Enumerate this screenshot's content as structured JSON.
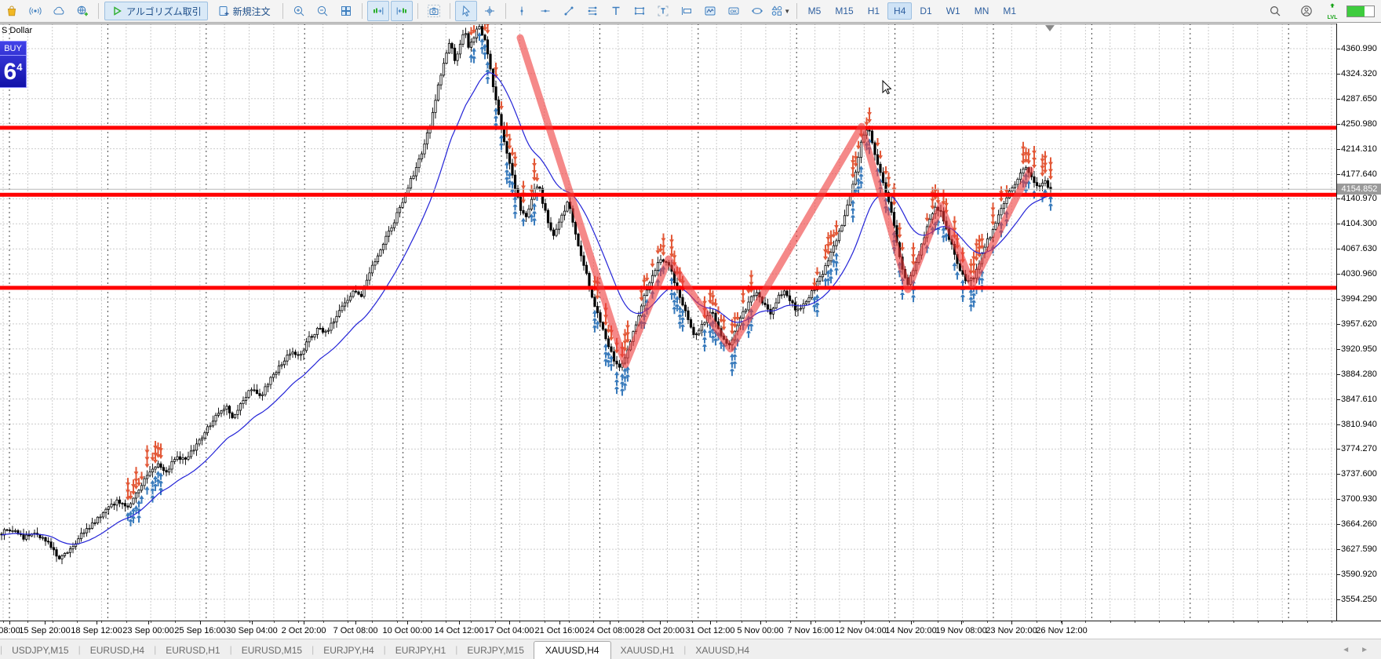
{
  "toolbar": {
    "items": [
      {
        "kind": "icon",
        "icon": "market-bag-icon"
      },
      {
        "kind": "icon",
        "icon": "signals-icon"
      },
      {
        "kind": "icon",
        "icon": "cloud-icon"
      },
      {
        "kind": "icon",
        "icon": "vps-globe-icon"
      },
      {
        "kind": "sep"
      },
      {
        "kind": "button",
        "icon": "algo-play-icon",
        "label": "アルゴリズム取引",
        "pressed": true,
        "name": "algo-trading-button"
      },
      {
        "kind": "button",
        "icon": "new-order-icon",
        "label": "新規注文",
        "pressed": false,
        "name": "new-order-button"
      },
      {
        "kind": "sep"
      },
      {
        "kind": "icon",
        "icon": "zoom-in-icon"
      },
      {
        "kind": "icon",
        "icon": "zoom-out-icon"
      },
      {
        "kind": "icon",
        "icon": "tile-windows-icon"
      },
      {
        "kind": "sep"
      },
      {
        "kind": "icon",
        "icon": "autoscroll-icon",
        "pressed": true
      },
      {
        "kind": "icon",
        "icon": "chart-shift-icon",
        "pressed": true
      },
      {
        "kind": "sep"
      },
      {
        "kind": "icon",
        "icon": "screenshot-camera-icon"
      },
      {
        "kind": "sep"
      },
      {
        "kind": "icon",
        "icon": "cursor-icon",
        "pressed": true
      },
      {
        "kind": "icon",
        "icon": "crosshair-icon"
      },
      {
        "kind": "sep"
      },
      {
        "kind": "icon",
        "icon": "vertical-line-icon"
      },
      {
        "kind": "icon",
        "icon": "horizontal-line-icon"
      },
      {
        "kind": "icon",
        "icon": "trendline-icon"
      },
      {
        "kind": "icon",
        "icon": "equidistant-channel-icon"
      },
      {
        "kind": "icon",
        "icon": "text-tool-icon"
      },
      {
        "kind": "icon",
        "icon": "rectangle-tool-icon"
      },
      {
        "kind": "icon",
        "icon": "text-label-icon"
      },
      {
        "kind": "icon",
        "icon": "price-label-icon"
      },
      {
        "kind": "icon",
        "icon": "indicator-window-icon"
      },
      {
        "kind": "icon",
        "icon": "ok-dialog-icon",
        "ok_text": "OK"
      },
      {
        "kind": "icon",
        "icon": "ellipse-tool-icon"
      },
      {
        "kind": "icon",
        "icon": "shapes-menu-icon",
        "caret": "▼"
      },
      {
        "kind": "sep"
      }
    ],
    "timeframes": [
      {
        "label": "M5",
        "active": false
      },
      {
        "label": "M15",
        "active": false
      },
      {
        "label": "H1",
        "active": false
      },
      {
        "label": "H4",
        "active": true
      },
      {
        "label": "D1",
        "active": false
      },
      {
        "label": "W1",
        "active": false
      },
      {
        "label": "MN",
        "active": false
      },
      {
        "label": "M1",
        "active": false
      }
    ],
    "right": {
      "search_icon": "search-icon",
      "account_icon": "account-icon",
      "level_label": "LVL",
      "progress_fill_pct": 65
    }
  },
  "chart_header": {
    "symbol_label": "S Dollar",
    "oneclick": {
      "buy_label": "BUY",
      "price_big": "6",
      "price_sup": "4"
    }
  },
  "chart_data": {
    "type": "candlestick",
    "symbol": "XAUUSD",
    "timeframe": "H4",
    "current_price": "4154.852",
    "current_price_value": 4154.852,
    "ylim": [
      3523,
      4398
    ],
    "grid": true,
    "price_axis_labels": [
      "4360.990",
      "4324.320",
      "4287.650",
      "4250.980",
      "4214.310",
      "4177.640",
      "4140.970",
      "4104.300",
      "4067.630",
      "4030.960",
      "3994.290",
      "3957.620",
      "3920.950",
      "3884.280",
      "3847.610",
      "3810.940",
      "3774.270",
      "3737.600",
      "3700.930",
      "3664.260",
      "3627.590",
      "3590.920",
      "3554.250"
    ],
    "time_axis_labels": [
      {
        "t": "08:00",
        "x": 12
      },
      {
        "t": "15 Sep 20:00",
        "x": 57
      },
      {
        "t": "18 Sep 12:00",
        "x": 123
      },
      {
        "t": "23 Sep 00:00",
        "x": 189
      },
      {
        "t": "25 Sep 16:00",
        "x": 255
      },
      {
        "t": "30 Sep 04:00",
        "x": 321
      },
      {
        "t": "2 Oct 20:00",
        "x": 387
      },
      {
        "t": "7 Oct 08:00",
        "x": 453
      },
      {
        "t": "10 Oct 00:00",
        "x": 519
      },
      {
        "t": "14 Oct 12:00",
        "x": 585
      },
      {
        "t": "17 Oct 04:00",
        "x": 649
      },
      {
        "t": "21 Oct 16:00",
        "x": 713
      },
      {
        "t": "24 Oct 08:00",
        "x": 777
      },
      {
        "t": "28 Oct 20:00",
        "x": 841
      },
      {
        "t": "31 Oct 12:00",
        "x": 905
      },
      {
        "t": "5 Nov 00:00",
        "x": 969
      },
      {
        "t": "7 Nov 16:00",
        "x": 1033
      },
      {
        "t": "12 Nov 04:00",
        "x": 1097
      },
      {
        "t": "14 Nov 20:00",
        "x": 1161
      },
      {
        "t": "19 Nov 08:00",
        "x": 1225
      },
      {
        "t": "23 Nov 20:00",
        "x": 1289
      },
      {
        "t": "26 Nov 12:00",
        "x": 1353
      }
    ],
    "horizontal_lines": [
      {
        "price": 4245.0,
        "color": "#ff0000",
        "width": 5
      },
      {
        "price": 4147.0,
        "color": "#ff0000",
        "width": 5
      },
      {
        "price": 4010.5,
        "color": "#ff0000",
        "width": 5
      }
    ],
    "zigzag": {
      "color": "#ef3b3b",
      "opacity": 0.6,
      "width": 9,
      "points": [
        [
          663,
          4377
        ],
        [
          797,
          3898
        ],
        [
          852,
          4053
        ],
        [
          931,
          3921
        ],
        [
          1098,
          4247
        ],
        [
          1157,
          4008
        ],
        [
          1199,
          4131
        ],
        [
          1239,
          4015
        ],
        [
          1313,
          4183
        ]
      ]
    },
    "moving_average": {
      "type": "EMA",
      "period": 24,
      "color": "#2323d7"
    },
    "marker_zones": [
      [
        160,
        205
      ],
      [
        598,
        658
      ],
      [
        666,
        700
      ],
      [
        748,
        806
      ],
      [
        810,
        874
      ],
      [
        896,
        964
      ],
      [
        1036,
        1075
      ],
      [
        1086,
        1172
      ],
      [
        1180,
        1254
      ],
      [
        1256,
        1346
      ]
    ],
    "marker_colors": {
      "sell": "#e2502d",
      "buy": "#2e74b8"
    },
    "bar_spacing": 3.5,
    "price_path": [
      [
        0,
        3650
      ],
      [
        15,
        3658
      ],
      [
        30,
        3645
      ],
      [
        45,
        3652
      ],
      [
        60,
        3638
      ],
      [
        75,
        3616
      ],
      [
        90,
        3628
      ],
      [
        105,
        3650
      ],
      [
        120,
        3668
      ],
      [
        135,
        3685
      ],
      [
        150,
        3700
      ],
      [
        162,
        3690
      ],
      [
        175,
        3712
      ],
      [
        188,
        3735
      ],
      [
        200,
        3752
      ],
      [
        212,
        3742
      ],
      [
        225,
        3765
      ],
      [
        238,
        3758
      ],
      [
        250,
        3782
      ],
      [
        262,
        3800
      ],
      [
        275,
        3822
      ],
      [
        288,
        3838
      ],
      [
        298,
        3820
      ],
      [
        308,
        3845
      ],
      [
        320,
        3862
      ],
      [
        332,
        3852
      ],
      [
        345,
        3878
      ],
      [
        358,
        3898
      ],
      [
        370,
        3918
      ],
      [
        382,
        3910
      ],
      [
        394,
        3936
      ],
      [
        406,
        3952
      ],
      [
        416,
        3944
      ],
      [
        428,
        3968
      ],
      [
        440,
        3988
      ],
      [
        450,
        4005
      ],
      [
        460,
        3996
      ],
      [
        470,
        4028
      ],
      [
        480,
        4056
      ],
      [
        490,
        4080
      ],
      [
        500,
        4102
      ],
      [
        510,
        4130
      ],
      [
        520,
        4158
      ],
      [
        530,
        4186
      ],
      [
        540,
        4215
      ],
      [
        550,
        4258
      ],
      [
        558,
        4302
      ],
      [
        566,
        4345
      ],
      [
        574,
        4372
      ],
      [
        580,
        4340
      ],
      [
        586,
        4368
      ],
      [
        592,
        4388
      ],
      [
        598,
        4360
      ],
      [
        604,
        4378
      ],
      [
        610,
        4394
      ],
      [
        616,
        4380
      ],
      [
        622,
        4352
      ],
      [
        628,
        4310
      ],
      [
        634,
        4270
      ],
      [
        640,
        4240
      ],
      [
        646,
        4210
      ],
      [
        652,
        4180
      ],
      [
        658,
        4150
      ],
      [
        664,
        4124
      ],
      [
        670,
        4110
      ],
      [
        676,
        4135
      ],
      [
        682,
        4160
      ],
      [
        688,
        4155
      ],
      [
        694,
        4125
      ],
      [
        700,
        4100
      ],
      [
        706,
        4088
      ],
      [
        712,
        4102
      ],
      [
        718,
        4122
      ],
      [
        724,
        4136
      ],
      [
        730,
        4110
      ],
      [
        736,
        4078
      ],
      [
        742,
        4054
      ],
      [
        748,
        4026
      ],
      [
        754,
        4000
      ],
      [
        760,
        3980
      ],
      [
        766,
        3955
      ],
      [
        772,
        3938
      ],
      [
        778,
        3918
      ],
      [
        784,
        3902
      ],
      [
        790,
        3892
      ],
      [
        796,
        3906
      ],
      [
        802,
        3928
      ],
      [
        808,
        3950
      ],
      [
        814,
        3972
      ],
      [
        820,
        3996
      ],
      [
        826,
        4014
      ],
      [
        832,
        4032
      ],
      [
        838,
        4046
      ],
      [
        844,
        4054
      ],
      [
        850,
        4048
      ],
      [
        856,
        4034
      ],
      [
        862,
        4012
      ],
      [
        868,
        3992
      ],
      [
        874,
        3972
      ],
      [
        880,
        3952
      ],
      [
        886,
        3938
      ],
      [
        892,
        3948
      ],
      [
        898,
        3962
      ],
      [
        904,
        3978
      ],
      [
        910,
        3968
      ],
      [
        916,
        3950
      ],
      [
        922,
        3936
      ],
      [
        928,
        3926
      ],
      [
        934,
        3938
      ],
      [
        940,
        3955
      ],
      [
        946,
        3970
      ],
      [
        952,
        3984
      ],
      [
        958,
        3996
      ],
      [
        964,
        4004
      ],
      [
        970,
        3994
      ],
      [
        976,
        3980
      ],
      [
        982,
        3972
      ],
      [
        988,
        3986
      ],
      [
        994,
        4000
      ],
      [
        1000,
        4008
      ],
      [
        1006,
        3996
      ],
      [
        1012,
        3982
      ],
      [
        1018,
        3976
      ],
      [
        1024,
        3986
      ],
      [
        1030,
        3996
      ],
      [
        1036,
        4006
      ],
      [
        1042,
        4018
      ],
      [
        1048,
        4032
      ],
      [
        1054,
        4048
      ],
      [
        1060,
        4062
      ],
      [
        1066,
        4080
      ],
      [
        1072,
        4100
      ],
      [
        1078,
        4124
      ],
      [
        1084,
        4150
      ],
      [
        1090,
        4180
      ],
      [
        1096,
        4215
      ],
      [
        1102,
        4242
      ],
      [
        1108,
        4238
      ],
      [
        1114,
        4210
      ],
      [
        1120,
        4185
      ],
      [
        1126,
        4160
      ],
      [
        1132,
        4140
      ],
      [
        1138,
        4108
      ],
      [
        1144,
        4072
      ],
      [
        1150,
        4040
      ],
      [
        1156,
        4014
      ],
      [
        1162,
        4030
      ],
      [
        1168,
        4052
      ],
      [
        1174,
        4072
      ],
      [
        1180,
        4094
      ],
      [
        1186,
        4116
      ],
      [
        1192,
        4128
      ],
      [
        1198,
        4124
      ],
      [
        1204,
        4102
      ],
      [
        1210,
        4082
      ],
      [
        1216,
        4060
      ],
      [
        1222,
        4042
      ],
      [
        1228,
        4028
      ],
      [
        1234,
        4018
      ],
      [
        1240,
        4024
      ],
      [
        1246,
        4042
      ],
      [
        1252,
        4060
      ],
      [
        1258,
        4078
      ],
      [
        1264,
        4092
      ],
      [
        1270,
        4108
      ],
      [
        1276,
        4124
      ],
      [
        1282,
        4140
      ],
      [
        1288,
        4152
      ],
      [
        1294,
        4164
      ],
      [
        1300,
        4176
      ],
      [
        1306,
        4186
      ],
      [
        1312,
        4180
      ],
      [
        1318,
        4166
      ],
      [
        1324,
        4158
      ],
      [
        1330,
        4168
      ],
      [
        1336,
        4160
      ],
      [
        1340,
        4155
      ]
    ]
  },
  "tabs": {
    "items": [
      {
        "label": "USDJPY,M15",
        "active": false
      },
      {
        "label": "EURUSD,H4",
        "active": false
      },
      {
        "label": "EURUSD,H1",
        "active": false
      },
      {
        "label": "EURUSD,M15",
        "active": false
      },
      {
        "label": "EURJPY,H4",
        "active": false
      },
      {
        "label": "EURJPY,H1",
        "active": false
      },
      {
        "label": "EURJPY,M15",
        "active": false
      },
      {
        "label": "XAUUSD,H4",
        "active": true
      },
      {
        "label": "XAUUSD,H1",
        "active": false
      },
      {
        "label": "XAUUSD,H4",
        "active": false
      }
    ],
    "scroll_left": "◄",
    "scroll_right": "►"
  },
  "colors": {
    "candle_up_fill": "#ffffff",
    "candle_down_fill": "#000000",
    "candle_stroke": "#000000",
    "grid": "#cccccc",
    "week_separator": "#444444",
    "current_price_line": "#b8b8b8",
    "badge_bg": "#9a9a9a",
    "accent_blue": "#3f7fbf",
    "active_btn_bg": "#d9e9f7"
  }
}
